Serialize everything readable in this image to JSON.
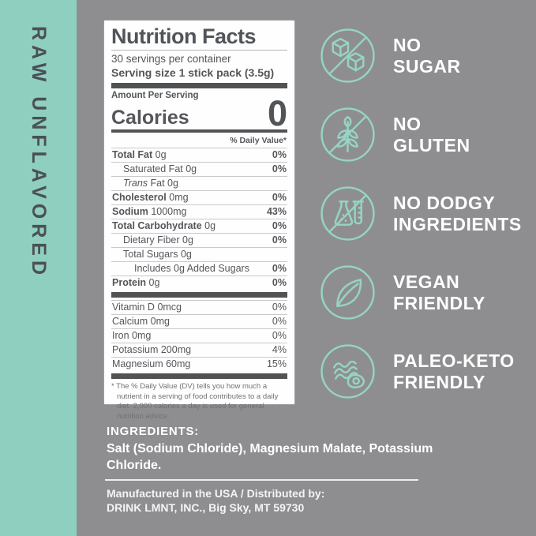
{
  "colors": {
    "background": "#8e8e90",
    "flavor_bar": "#8fcfc0",
    "icon_teal": "#96d4c3",
    "panel_text": "#54565a",
    "white_text": "#ffffff"
  },
  "flavor_bar": {
    "label": "RAW UNFLAVORED"
  },
  "nutrition_panel": {
    "title": "Nutrition Facts",
    "servings_per_container": "30 servings per container",
    "serving_size": "Serving size 1 stick pack (3.5g)",
    "amount_per_serving": "Amount Per Serving",
    "calories_label": "Calories",
    "calories_value": "0",
    "daily_value_header": "% Daily Value*",
    "rows": [
      {
        "label": "Total Fat",
        "amount": "0g",
        "dv": "0%",
        "bold": true,
        "indent": 0,
        "italic": false,
        "dv_bold": true
      },
      {
        "label": "Saturated Fat",
        "amount": "0g",
        "dv": "0%",
        "bold": false,
        "indent": 1,
        "italic": false,
        "dv_bold": true
      },
      {
        "label": "Trans Fat",
        "amount": "0g",
        "dv": "",
        "bold": false,
        "indent": 1,
        "italic": true,
        "dv_bold": false
      },
      {
        "label": "Cholesterol",
        "amount": "0mg",
        "dv": "0%",
        "bold": true,
        "indent": 0,
        "italic": false,
        "dv_bold": true
      },
      {
        "label": "Sodium",
        "amount": "1000mg",
        "dv": "43%",
        "bold": true,
        "indent": 0,
        "italic": false,
        "dv_bold": true
      },
      {
        "label": "Total Carbohydrate",
        "amount": "0g",
        "dv": "0%",
        "bold": true,
        "indent": 0,
        "italic": false,
        "dv_bold": true
      },
      {
        "label": "Dietary Fiber",
        "amount": "0g",
        "dv": "0%",
        "bold": false,
        "indent": 1,
        "italic": false,
        "dv_bold": true
      },
      {
        "label": "Total Sugars",
        "amount": "0g",
        "dv": "",
        "bold": false,
        "indent": 1,
        "italic": false,
        "dv_bold": false
      },
      {
        "label": "Includes 0g Added Sugars",
        "amount": "",
        "dv": "0%",
        "bold": false,
        "indent": 2,
        "italic": false,
        "dv_bold": true
      },
      {
        "label": "Protein",
        "amount": "0g",
        "dv": "0%",
        "bold": true,
        "indent": 0,
        "italic": false,
        "dv_bold": true
      }
    ],
    "micronutrients": [
      {
        "label": "Vitamin D",
        "amount": "0mcg",
        "dv": "0%"
      },
      {
        "label": "Calcium",
        "amount": "0mg",
        "dv": "0%"
      },
      {
        "label": "Iron",
        "amount": "0mg",
        "dv": "0%"
      },
      {
        "label": "Potassium",
        "amount": "200mg",
        "dv": "4%"
      },
      {
        "label": "Magnesium",
        "amount": "60mg",
        "dv": "15%"
      }
    ],
    "footnote": "* The % Daily Value (DV) tells you how much a nutrient in a serving of food contributes to a daily diet. 2,000 calories a day is used for general nutrition advice."
  },
  "badges": [
    {
      "icon": "no-sugar-icon",
      "lines": [
        "NO",
        "SUGAR"
      ]
    },
    {
      "icon": "no-gluten-icon",
      "lines": [
        "NO",
        "GLUTEN"
      ]
    },
    {
      "icon": "no-dodgy-ingredients-icon",
      "lines": [
        "NO DODGY",
        "INGREDIENTS"
      ]
    },
    {
      "icon": "vegan-friendly-icon",
      "lines": [
        "VEGAN",
        "FRIENDLY"
      ]
    },
    {
      "icon": "paleo-keto-friendly-icon",
      "lines": [
        "PALEO-KETO",
        "FRIENDLY"
      ]
    }
  ],
  "ingredients": {
    "heading": "INGREDIENTS:",
    "body": "Salt (Sodium Chloride), Magnesium Malate, Potassium Chloride."
  },
  "footer": {
    "line1": "Manufactured in the USA / Distributed by:",
    "line2": "DRINK LMNT, INC., Big Sky, MT 59730"
  }
}
